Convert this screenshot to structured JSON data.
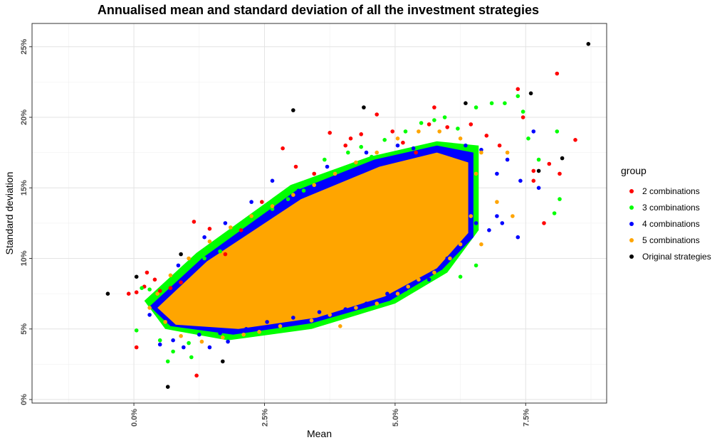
{
  "chart_data": {
    "type": "scatter",
    "title": "Annualised mean and standard deviation of all the investment strategies",
    "xlabel": "Mean",
    "ylabel": "Standard deviation",
    "xlim": [
      -0.0195,
      0.0905
    ],
    "ylim": [
      -0.0025,
      0.2665
    ],
    "x_ticks": [
      0.0,
      0.025,
      0.05,
      0.075
    ],
    "x_tick_labels": [
      "0.0%",
      "2.5%",
      "5.0%",
      "7.5%"
    ],
    "y_ticks": [
      0.0,
      0.05,
      0.1,
      0.15,
      0.2,
      0.25
    ],
    "y_tick_labels": [
      "0%",
      "5%",
      "10%",
      "15%",
      "20%",
      "25%"
    ],
    "grid": true,
    "legend": {
      "title": "group",
      "placement": "right"
    },
    "series": [
      {
        "name": "2 combinations",
        "color": "#ff0000",
        "points": [
          [
            -0.001,
            0.075
          ],
          [
            0.0005,
            0.076
          ],
          [
            0.0005,
            0.037
          ],
          [
            0.002,
            0.08
          ],
          [
            0.0025,
            0.09
          ],
          [
            0.004,
            0.085
          ],
          [
            0.005,
            0.077
          ],
          [
            0.007,
            0.079
          ],
          [
            0.009,
            0.083
          ],
          [
            0.0115,
            0.126
          ],
          [
            0.012,
            0.017
          ],
          [
            0.0145,
            0.121
          ],
          [
            0.0175,
            0.103
          ],
          [
            0.0205,
            0.12
          ],
          [
            0.0245,
            0.14
          ],
          [
            0.0285,
            0.178
          ],
          [
            0.031,
            0.165
          ],
          [
            0.0345,
            0.16
          ],
          [
            0.0375,
            0.189
          ],
          [
            0.0405,
            0.18
          ],
          [
            0.0415,
            0.185
          ],
          [
            0.0435,
            0.188
          ],
          [
            0.0465,
            0.202
          ],
          [
            0.0495,
            0.19
          ],
          [
            0.0515,
            0.182
          ],
          [
            0.054,
            0.175
          ],
          [
            0.0565,
            0.195
          ],
          [
            0.0575,
            0.207
          ],
          [
            0.06,
            0.193
          ],
          [
            0.0645,
            0.195
          ],
          [
            0.0675,
            0.187
          ],
          [
            0.07,
            0.18
          ],
          [
            0.0735,
            0.22
          ],
          [
            0.0745,
            0.2
          ],
          [
            0.0765,
            0.162
          ],
          [
            0.0785,
            0.125
          ],
          [
            0.0765,
            0.155
          ],
          [
            0.0795,
            0.167
          ],
          [
            0.0815,
            0.16
          ],
          [
            0.081,
            0.231
          ],
          [
            0.0845,
            0.184
          ]
        ]
      },
      {
        "name": "3 combinations",
        "color": "#00ff00",
        "points": [
          [
            0.0005,
            0.049
          ],
          [
            0.0015,
            0.079
          ],
          [
            0.003,
            0.078
          ],
          [
            0.005,
            0.042
          ],
          [
            0.0065,
            0.027
          ],
          [
            0.0075,
            0.034
          ],
          [
            0.0105,
            0.04
          ],
          [
            0.011,
            0.03
          ],
          [
            0.0135,
            0.1
          ],
          [
            0.0165,
            0.105
          ],
          [
            0.0195,
            0.12
          ],
          [
            0.0225,
            0.128
          ],
          [
            0.0265,
            0.135
          ],
          [
            0.0295,
            0.142
          ],
          [
            0.0325,
            0.148
          ],
          [
            0.0365,
            0.17
          ],
          [
            0.041,
            0.175
          ],
          [
            0.0435,
            0.179
          ],
          [
            0.0455,
            0.172
          ],
          [
            0.048,
            0.184
          ],
          [
            0.052,
            0.19
          ],
          [
            0.055,
            0.196
          ],
          [
            0.0575,
            0.198
          ],
          [
            0.0595,
            0.2
          ],
          [
            0.062,
            0.192
          ],
          [
            0.0655,
            0.207
          ],
          [
            0.0685,
            0.21
          ],
          [
            0.071,
            0.21
          ],
          [
            0.0735,
            0.215
          ],
          [
            0.0745,
            0.204
          ],
          [
            0.0755,
            0.185
          ],
          [
            0.0775,
            0.17
          ],
          [
            0.0805,
            0.132
          ],
          [
            0.081,
            0.19
          ],
          [
            0.0815,
            0.142
          ],
          [
            0.0655,
            0.095
          ],
          [
            0.0625,
            0.087
          ]
        ]
      },
      {
        "name": "4 combinations",
        "color": "#0000ff",
        "points": [
          [
            0.003,
            0.06
          ],
          [
            0.005,
            0.039
          ],
          [
            0.0075,
            0.042
          ],
          [
            0.0095,
            0.037
          ],
          [
            0.0145,
            0.037
          ],
          [
            0.018,
            0.041
          ],
          [
            0.0085,
            0.095
          ],
          [
            0.0135,
            0.115
          ],
          [
            0.0175,
            0.125
          ],
          [
            0.0225,
            0.14
          ],
          [
            0.0265,
            0.155
          ],
          [
            0.0315,
            0.148
          ],
          [
            0.037,
            0.165
          ],
          [
            0.0445,
            0.175
          ],
          [
            0.0505,
            0.18
          ],
          [
            0.0535,
            0.178
          ],
          [
            0.0595,
            0.175
          ],
          [
            0.0635,
            0.18
          ],
          [
            0.0665,
            0.177
          ],
          [
            0.0695,
            0.16
          ],
          [
            0.0715,
            0.17
          ],
          [
            0.074,
            0.155
          ],
          [
            0.0765,
            0.19
          ],
          [
            0.0775,
            0.15
          ],
          [
            0.0735,
            0.115
          ],
          [
            0.0705,
            0.125
          ],
          [
            0.0695,
            0.13
          ],
          [
            0.068,
            0.12
          ],
          [
            0.0655,
            0.125
          ],
          [
            0.063,
            0.11
          ],
          [
            0.06,
            0.1
          ],
          [
            0.0565,
            0.085
          ],
          [
            0.052,
            0.078
          ],
          [
            0.0485,
            0.075
          ],
          [
            0.0445,
            0.068
          ],
          [
            0.0405,
            0.064
          ],
          [
            0.0355,
            0.062
          ],
          [
            0.0305,
            0.058
          ],
          [
            0.0255,
            0.055
          ],
          [
            0.0215,
            0.05
          ],
          [
            0.0165,
            0.047
          ],
          [
            0.0125,
            0.046
          ]
        ]
      },
      {
        "name": "5 combinations",
        "color": "#ffa500",
        "points": [
          [
            0.003,
            0.065
          ],
          [
            0.006,
            0.055
          ],
          [
            0.009,
            0.045
          ],
          [
            0.013,
            0.041
          ],
          [
            0.017,
            0.044
          ],
          [
            0.021,
            0.046
          ],
          [
            0.024,
            0.048
          ],
          [
            0.028,
            0.052
          ],
          [
            0.034,
            0.056
          ],
          [
            0.0375,
            0.06
          ],
          [
            0.0425,
            0.065
          ],
          [
            0.0465,
            0.068
          ],
          [
            0.0505,
            0.075
          ],
          [
            0.0545,
            0.085
          ],
          [
            0.0575,
            0.09
          ],
          [
            0.0605,
            0.1
          ],
          [
            0.0625,
            0.11
          ],
          [
            0.0645,
            0.13
          ],
          [
            0.0655,
            0.16
          ],
          [
            0.0665,
            0.175
          ],
          [
            0.0625,
            0.185
          ],
          [
            0.0585,
            0.19
          ],
          [
            0.0545,
            0.19
          ],
          [
            0.0505,
            0.185
          ],
          [
            0.0465,
            0.175
          ],
          [
            0.0425,
            0.168
          ],
          [
            0.0385,
            0.16
          ],
          [
            0.0345,
            0.152
          ],
          [
            0.0305,
            0.145
          ],
          [
            0.0265,
            0.137
          ],
          [
            0.0225,
            0.13
          ],
          [
            0.0185,
            0.122
          ],
          [
            0.0145,
            0.112
          ],
          [
            0.0105,
            0.1
          ],
          [
            0.007,
            0.088
          ],
          [
            0.0045,
            0.075
          ],
          [
            0.0395,
            0.052
          ],
          [
            0.0525,
            0.08
          ],
          [
            0.0695,
            0.14
          ],
          [
            0.0725,
            0.13
          ],
          [
            0.0665,
            0.11
          ],
          [
            0.0715,
            0.175
          ]
        ]
      },
      {
        "name": "Original strategies",
        "color": "#000000",
        "points": [
          [
            -0.005,
            0.075
          ],
          [
            0.0005,
            0.087
          ],
          [
            0.0065,
            0.009
          ],
          [
            0.009,
            0.103
          ],
          [
            0.017,
            0.027
          ],
          [
            0.0305,
            0.205
          ],
          [
            0.044,
            0.207
          ],
          [
            0.0635,
            0.21
          ],
          [
            0.076,
            0.217
          ],
          [
            0.0775,
            0.162
          ],
          [
            0.082,
            0.171
          ],
          [
            0.087,
            0.252
          ]
        ]
      }
    ]
  }
}
